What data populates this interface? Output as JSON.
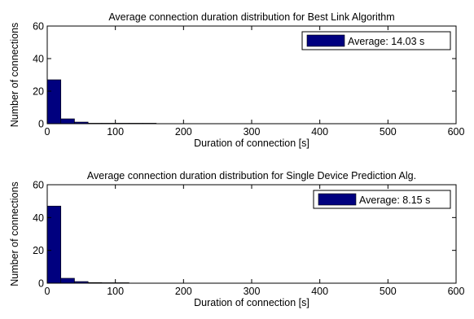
{
  "chart_data": [
    {
      "type": "bar",
      "title": "Average connection duration distribution for Best Link Algorithm",
      "xlabel": "Duration of connection [s]",
      "ylabel": "Number of connections",
      "xlim": [
        0,
        600
      ],
      "ylim": [
        0,
        60
      ],
      "xticks": [
        0,
        100,
        200,
        300,
        400,
        500,
        600
      ],
      "yticks": [
        0,
        20,
        40,
        60
      ],
      "bin_width": 20,
      "x": [
        10,
        30,
        50,
        70,
        90,
        110,
        130,
        150
      ],
      "values": [
        27,
        3,
        1,
        0.3,
        0.2,
        0.1,
        0.05,
        0.05
      ],
      "legend": "Average: 14.03 s",
      "legend_position": "top-right",
      "grid": false,
      "bar_color": "#00007f"
    },
    {
      "type": "bar",
      "title": "Average connection duration distribution for Single Device Prediction Alg.",
      "xlabel": "Duration of connection [s]",
      "ylabel": "Number of connections",
      "xlim": [
        0,
        600
      ],
      "ylim": [
        0,
        60
      ],
      "xticks": [
        0,
        100,
        200,
        300,
        400,
        500,
        600
      ],
      "yticks": [
        0,
        20,
        40,
        60
      ],
      "bin_width": 20,
      "x": [
        10,
        30,
        50,
        70,
        90,
        110
      ],
      "values": [
        47,
        3,
        1,
        0.4,
        0.2,
        0.1
      ],
      "legend": "Average: 8.15 s",
      "legend_position": "top-right",
      "grid": false,
      "bar_color": "#00007f"
    }
  ]
}
